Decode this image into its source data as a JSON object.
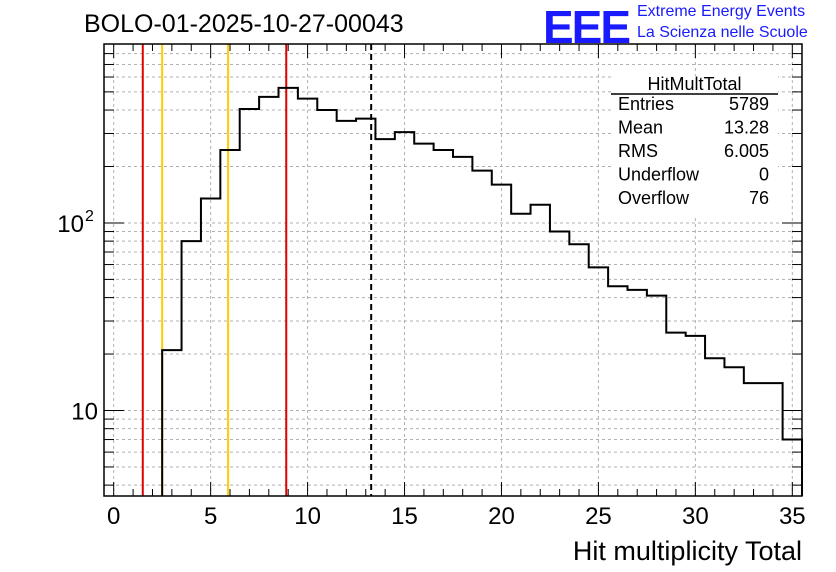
{
  "header": {
    "title": "BOLO-01-2025-10-27-00043",
    "logo_text": "EEE",
    "logo_line1": "Extreme Energy Events",
    "logo_line2": "La Scienza nelle Scuole"
  },
  "stats_box": {
    "name": "HitMultTotal",
    "rows": [
      {
        "label": "Entries",
        "value": "5789"
      },
      {
        "label": "Mean",
        "value": "13.28"
      },
      {
        "label": "RMS",
        "value": "6.005"
      },
      {
        "label": "Underflow",
        "value": "0"
      },
      {
        "label": "Overflow",
        "value": "76"
      }
    ]
  },
  "chart_data": {
    "type": "bar",
    "style": "step-histogram",
    "title": "BOLO-01-2025-10-27-00043",
    "xlabel": "Hit multiplicity Total",
    "ylabel": "",
    "xlim": [
      -0.5,
      35.5
    ],
    "ylim": [
      3.5,
      900
    ],
    "ylog": true,
    "grid": true,
    "xticks": [
      0,
      5,
      10,
      15,
      20,
      25,
      30,
      35
    ],
    "yticks": [
      {
        "value": 10,
        "label": "10"
      },
      {
        "value": 100,
        "label": "10",
        "exp": "2"
      }
    ],
    "bins": {
      "edges": [
        2.5,
        3.5,
        4.5,
        5.5,
        6.5,
        7.5,
        8.5,
        9.5,
        10.5,
        11.5,
        12.5,
        13.5,
        14.5,
        15.5,
        16.5,
        17.5,
        18.5,
        19.5,
        20.5,
        21.5,
        22.5,
        23.5,
        24.5,
        25.5,
        26.5,
        27.5,
        28.5,
        29.5,
        30.5,
        31.5,
        32.5,
        33.5,
        34.5,
        35.5
      ],
      "values": [
        21,
        80,
        135,
        245,
        405,
        470,
        525,
        460,
        400,
        350,
        360,
        280,
        305,
        265,
        245,
        225,
        190,
        160,
        112,
        125,
        90,
        77,
        58,
        46,
        44,
        41,
        26,
        25,
        19,
        17,
        14,
        14,
        7
      ]
    },
    "markers": [
      {
        "x": 1.5,
        "color": "#e00000",
        "style": "solid"
      },
      {
        "x": 2.5,
        "color": "#ffcc00",
        "style": "solid"
      },
      {
        "x": 5.9,
        "color": "#ffcc00",
        "style": "solid"
      },
      {
        "x": 8.9,
        "color": "#e00000",
        "style": "solid"
      },
      {
        "x": 13.28,
        "color": "#000000",
        "style": "dashed"
      }
    ]
  }
}
